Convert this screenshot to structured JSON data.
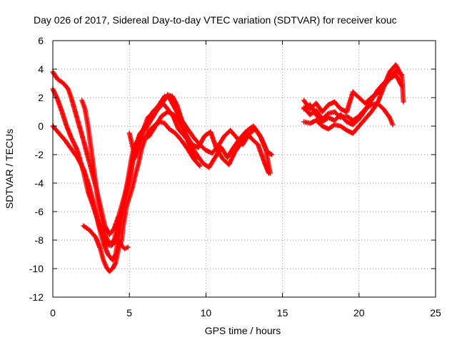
{
  "chart_data": {
    "type": "scatter",
    "title": "Day 026 of 2017, Sidereal Day-to-day VTEC variation (SDTVAR) for receiver kouc",
    "xlabel": "GPS time / hours",
    "ylabel": "SDTVAR / TECUs",
    "xlim": [
      0,
      25
    ],
    "ylim": [
      -12,
      6
    ],
    "xticks": [
      "0",
      "5",
      "10",
      "15",
      "20",
      "25"
    ],
    "yticks": [
      "-12",
      "-10",
      "-8",
      "-6",
      "-4",
      "-2",
      "0",
      "2",
      "4",
      "6"
    ],
    "grid": true,
    "marker": "plus",
    "marker_color": "#ff0000",
    "series": [
      {
        "tracks": [
          [
            [
              0.0,
              3.8
            ],
            [
              0.3,
              3.3
            ],
            [
              0.7,
              3.0
            ],
            [
              1.0,
              2.6
            ],
            [
              1.2,
              2.0
            ],
            [
              1.6,
              0.5
            ],
            [
              2.0,
              -1.0
            ],
            [
              2.4,
              -2.6
            ],
            [
              2.8,
              -4.2
            ],
            [
              3.1,
              -5.6
            ],
            [
              3.4,
              -7.0
            ],
            [
              3.7,
              -7.6
            ],
            [
              4.0,
              -7.2
            ],
            [
              4.3,
              -6.3
            ],
            [
              4.6,
              -5.2
            ],
            [
              4.9,
              -4.0
            ],
            [
              5.2,
              -2.6
            ],
            [
              5.5,
              -1.3
            ],
            [
              5.8,
              -0.4
            ],
            [
              6.2,
              0.3
            ],
            [
              6.6,
              1.0
            ],
            [
              7.0,
              1.6
            ],
            [
              7.3,
              2.1
            ],
            [
              7.6,
              2.0
            ],
            [
              7.9,
              1.4
            ],
            [
              8.3,
              0.6
            ],
            [
              8.8,
              -0.2
            ],
            [
              9.2,
              -0.8
            ],
            [
              9.6,
              -1.3
            ],
            [
              10.0,
              -1.7
            ],
            [
              10.4,
              -1.9
            ],
            [
              10.8,
              -1.4
            ],
            [
              11.2,
              -0.7
            ],
            [
              11.6,
              -0.3
            ],
            [
              12.0,
              -0.8
            ],
            [
              12.4,
              -1.3
            ],
            [
              12.8,
              -0.6
            ],
            [
              13.2,
              -0.2
            ],
            [
              13.6,
              -0.8
            ],
            [
              14.0,
              -1.8
            ],
            [
              14.3,
              -2.0
            ]
          ],
          [
            [
              0.0,
              2.6
            ],
            [
              0.3,
              1.9
            ],
            [
              0.6,
              1.0
            ],
            [
              0.9,
              0.0
            ],
            [
              1.2,
              -0.8
            ],
            [
              1.6,
              -1.7
            ],
            [
              2.0,
              -3.2
            ],
            [
              2.3,
              -4.6
            ],
            [
              2.6,
              -5.5
            ],
            [
              2.9,
              -6.5
            ],
            [
              3.2,
              -7.5
            ],
            [
              3.5,
              -8.3
            ],
            [
              3.8,
              -8.4
            ],
            [
              4.1,
              -8.1
            ],
            [
              4.4,
              -6.5
            ],
            [
              4.7,
              -5.2
            ],
            [
              5.0,
              -4.0
            ],
            [
              5.2,
              -2.6
            ],
            [
              5.4,
              -1.4
            ],
            [
              5.7,
              -0.5
            ],
            [
              6.0,
              -0.3
            ],
            [
              6.4,
              0.4
            ],
            [
              6.8,
              1.1
            ],
            [
              7.2,
              1.6
            ],
            [
              7.5,
              1.2
            ],
            [
              7.9,
              0.6
            ],
            [
              8.2,
              -0.2
            ],
            [
              8.6,
              -0.7
            ],
            [
              9.0,
              -1.3
            ],
            [
              9.4,
              -2.0
            ],
            [
              9.8,
              -2.6
            ],
            [
              10.2,
              -2.9
            ],
            [
              10.6,
              -2.2
            ],
            [
              11.0,
              -1.5
            ],
            [
              11.4,
              -2.2
            ],
            [
              11.8,
              -1.5
            ],
            [
              12.2,
              -0.9
            ],
            [
              12.6,
              -0.4
            ],
            [
              13.0,
              -0.9
            ],
            [
              13.4,
              -1.3
            ],
            [
              13.8,
              -2.5
            ],
            [
              14.1,
              -3.3
            ]
          ],
          [
            [
              0.0,
              0.0
            ],
            [
              0.4,
              -0.5
            ],
            [
              0.8,
              -1.0
            ],
            [
              1.2,
              -1.6
            ],
            [
              1.6,
              -2.2
            ],
            [
              2.0,
              -3.0
            ],
            [
              2.4,
              -4.3
            ],
            [
              2.7,
              -5.5
            ],
            [
              3.0,
              -7.0
            ],
            [
              3.3,
              -8.2
            ],
            [
              3.6,
              -9.0
            ],
            [
              3.9,
              -9.4
            ],
            [
              4.1,
              -9.0
            ],
            [
              4.4,
              -7.2
            ],
            [
              4.6,
              -5.5
            ],
            [
              4.9,
              -3.8
            ],
            [
              5.1,
              -2.5
            ],
            [
              5.3,
              -1.4
            ],
            [
              5.6,
              -1.0
            ],
            [
              5.9,
              -0.9
            ],
            [
              6.3,
              -0.7
            ],
            [
              6.7,
              0.0
            ],
            [
              7.1,
              0.7
            ],
            [
              7.5,
              1.0
            ],
            [
              7.9,
              0.8
            ],
            [
              8.3,
              0.3
            ],
            [
              8.7,
              -0.6
            ],
            [
              9.1,
              -1.3
            ],
            [
              9.5,
              -1.5
            ],
            [
              9.9,
              -0.7
            ],
            [
              10.3,
              -0.4
            ],
            [
              10.7,
              -1.6
            ],
            [
              11.1,
              -2.3
            ],
            [
              11.5,
              -2.7
            ],
            [
              11.9,
              -1.8
            ],
            [
              12.3,
              -1.2
            ],
            [
              12.7,
              -0.3
            ],
            [
              13.1,
              0.0
            ],
            [
              13.5,
              -0.6
            ],
            [
              13.9,
              -1.6
            ],
            [
              14.2,
              -3.3
            ]
          ],
          [
            [
              1.9,
              1.8
            ],
            [
              2.1,
              1.2
            ],
            [
              2.3,
              0.0
            ],
            [
              2.5,
              -1.6
            ],
            [
              2.7,
              -3.2
            ],
            [
              2.9,
              -4.8
            ],
            [
              3.1,
              -6.0
            ],
            [
              3.4,
              -7.6
            ],
            [
              3.7,
              -8.3
            ],
            [
              4.0,
              -8.0
            ],
            [
              4.3,
              -6.7
            ],
            [
              4.6,
              -5.5
            ],
            [
              4.9,
              -4.3
            ],
            [
              5.1,
              -3.0
            ],
            [
              5.3,
              -1.7
            ]
          ],
          [
            [
              2.0,
              -7.0
            ],
            [
              2.4,
              -7.3
            ],
            [
              2.8,
              -7.8
            ],
            [
              3.1,
              -8.6
            ],
            [
              3.3,
              -9.4
            ],
            [
              3.5,
              -9.9
            ],
            [
              3.7,
              -10.2
            ],
            [
              3.9,
              -10.0
            ],
            [
              4.1,
              -9.6
            ],
            [
              4.3,
              -8.6
            ],
            [
              4.5,
              -8.0
            ],
            [
              4.6,
              -7.0
            ],
            [
              4.7,
              -6.4
            ],
            [
              4.8,
              -5.7
            ],
            [
              5.0,
              -5.0
            ],
            [
              5.2,
              -4.3
            ],
            [
              5.4,
              -3.4
            ],
            [
              5.6,
              -2.6
            ],
            [
              5.8,
              -1.6
            ],
            [
              6.0,
              -1.0
            ],
            [
              6.3,
              -0.3
            ],
            [
              6.7,
              0.1
            ],
            [
              7.0,
              0.3
            ],
            [
              7.3,
              0.2
            ],
            [
              7.6,
              -0.2
            ],
            [
              8.0,
              -0.5
            ],
            [
              8.4,
              -1.0
            ],
            [
              8.8,
              -1.6
            ],
            [
              9.2,
              -2.3
            ],
            [
              9.6,
              -2.8
            ]
          ],
          [
            [
              5.0,
              -0.5
            ],
            [
              5.2,
              -1.4
            ],
            [
              5.4,
              -2.2
            ],
            [
              5.6,
              -1.6
            ],
            [
              5.8,
              -0.9
            ],
            [
              6.0,
              0.0
            ],
            [
              6.2,
              0.6
            ],
            [
              6.4,
              0.8
            ],
            [
              6.6,
              1.1
            ],
            [
              6.9,
              1.3
            ],
            [
              7.2,
              1.7
            ],
            [
              7.5,
              2.2
            ],
            [
              7.8,
              2.1
            ],
            [
              8.1,
              1.5
            ],
            [
              8.4,
              0.5
            ],
            [
              8.6,
              -0.3
            ],
            [
              8.8,
              -1.0
            ],
            [
              9.1,
              -1.8
            ],
            [
              9.4,
              -2.3
            ]
          ],
          [
            [
              4.3,
              -8.0
            ],
            [
              4.5,
              -8.4
            ],
            [
              4.7,
              -8.6
            ],
            [
              4.9,
              -8.5
            ]
          ]
        ]
      },
      {
        "tracks": [
          [
            [
              16.4,
              1.8
            ],
            [
              16.8,
              1.2
            ],
            [
              17.2,
              1.6
            ],
            [
              17.6,
              1.0
            ],
            [
              18.0,
              1.5
            ],
            [
              18.4,
              1.7
            ],
            [
              18.8,
              1.2
            ],
            [
              19.2,
              1.0
            ],
            [
              19.6,
              2.4
            ],
            [
              20.0,
              2.0
            ],
            [
              20.4,
              1.6
            ],
            [
              20.8,
              2.0
            ],
            [
              21.2,
              2.3
            ],
            [
              21.6,
              2.8
            ],
            [
              22.0,
              3.3
            ],
            [
              22.4,
              3.6
            ],
            [
              22.8,
              2.8
            ]
          ],
          [
            [
              16.4,
              1.3
            ],
            [
              16.8,
              0.8
            ],
            [
              17.2,
              1.1
            ],
            [
              17.6,
              0.5
            ],
            [
              18.0,
              0.9
            ],
            [
              18.4,
              1.0
            ],
            [
              18.8,
              0.6
            ],
            [
              19.2,
              0.7
            ],
            [
              19.6,
              0.4
            ],
            [
              20.0,
              0.7
            ],
            [
              20.4,
              1.2
            ],
            [
              20.8,
              1.5
            ],
            [
              21.2,
              1.6
            ],
            [
              21.6,
              2.7
            ],
            [
              22.0,
              3.8
            ],
            [
              22.4,
              4.3
            ],
            [
              22.8,
              3.5
            ],
            [
              22.9,
              1.7
            ]
          ],
          [
            [
              16.4,
              0.3
            ],
            [
              16.8,
              0.2
            ],
            [
              17.2,
              0.4
            ],
            [
              17.6,
              0.0
            ],
            [
              18.0,
              -0.2
            ],
            [
              18.4,
              0.1
            ],
            [
              18.8,
              0.0
            ],
            [
              19.2,
              -0.3
            ],
            [
              19.6,
              -0.5
            ],
            [
              20.0,
              0.0
            ],
            [
              20.4,
              0.5
            ],
            [
              20.8,
              1.0
            ],
            [
              21.2,
              1.6
            ],
            [
              21.6,
              1.2
            ],
            [
              22.0,
              0.6
            ],
            [
              22.2,
              0.1
            ]
          ],
          [
            [
              16.4,
              1.2
            ],
            [
              16.8,
              1.5
            ],
            [
              17.2,
              0.8
            ],
            [
              17.6,
              0.3
            ],
            [
              18.0,
              0.6
            ],
            [
              18.4,
              0.4
            ],
            [
              18.8,
              0.8
            ],
            [
              19.2,
              0.3
            ],
            [
              19.6,
              0.1
            ],
            [
              20.0,
              0.5
            ],
            [
              20.4,
              1.1
            ],
            [
              20.8,
              1.8
            ],
            [
              21.2,
              2.5
            ],
            [
              21.6,
              3.0
            ],
            [
              22.0,
              3.4
            ],
            [
              22.4,
              3.9
            ],
            [
              22.8,
              3.6
            ]
          ]
        ]
      }
    ]
  }
}
